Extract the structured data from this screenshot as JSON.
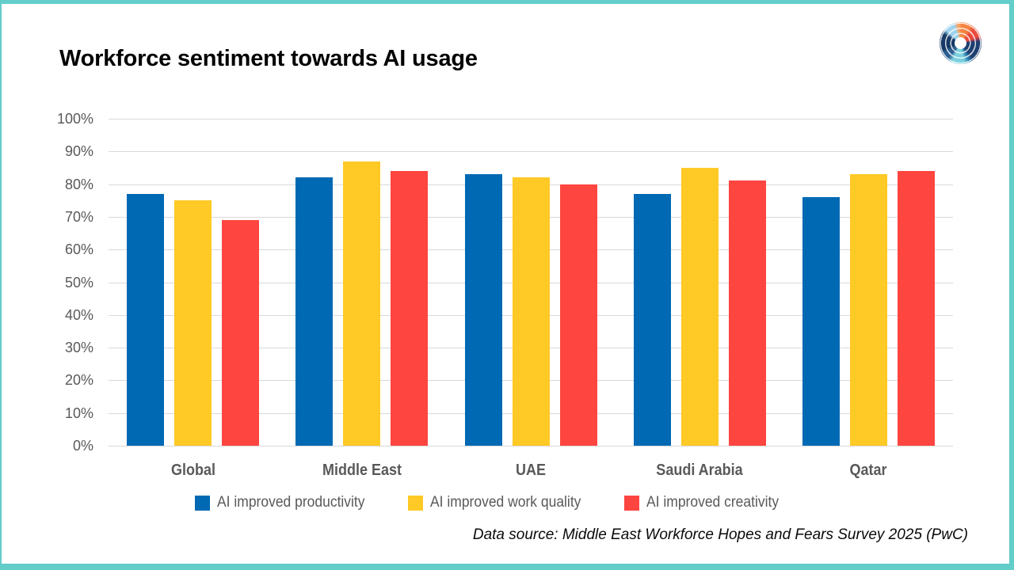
{
  "page": {
    "border_color": "#63cdca",
    "background_color": "#ffffff"
  },
  "chart_data": {
    "type": "bar",
    "title": "Workforce sentiment towards AI usage",
    "categories": [
      "Global",
      "Middle East",
      "UAE",
      "Saudi Arabia",
      "Qatar"
    ],
    "series": [
      {
        "name": "AI improved productivity",
        "color": "#0069b4",
        "values": [
          77,
          82,
          83,
          77,
          76
        ]
      },
      {
        "name": "AI improved work quality",
        "color": "#ffc926",
        "values": [
          75,
          87,
          82,
          85,
          83
        ]
      },
      {
        "name": "AI improved creativity",
        "color": "#ff4540",
        "values": [
          69,
          84,
          80,
          81,
          84
        ]
      }
    ],
    "xlabel": "",
    "ylabel": "",
    "ylim": [
      0,
      100
    ],
    "ytick_step": 10,
    "ytick_suffix": "%",
    "grid": true,
    "legend_position": "bottom"
  },
  "footer": {
    "source_text": "Data source: Middle East Workforce Hopes and Fears Survey 2025 (PwC)"
  },
  "logo": {
    "name": "pwc-swirl-logo"
  }
}
